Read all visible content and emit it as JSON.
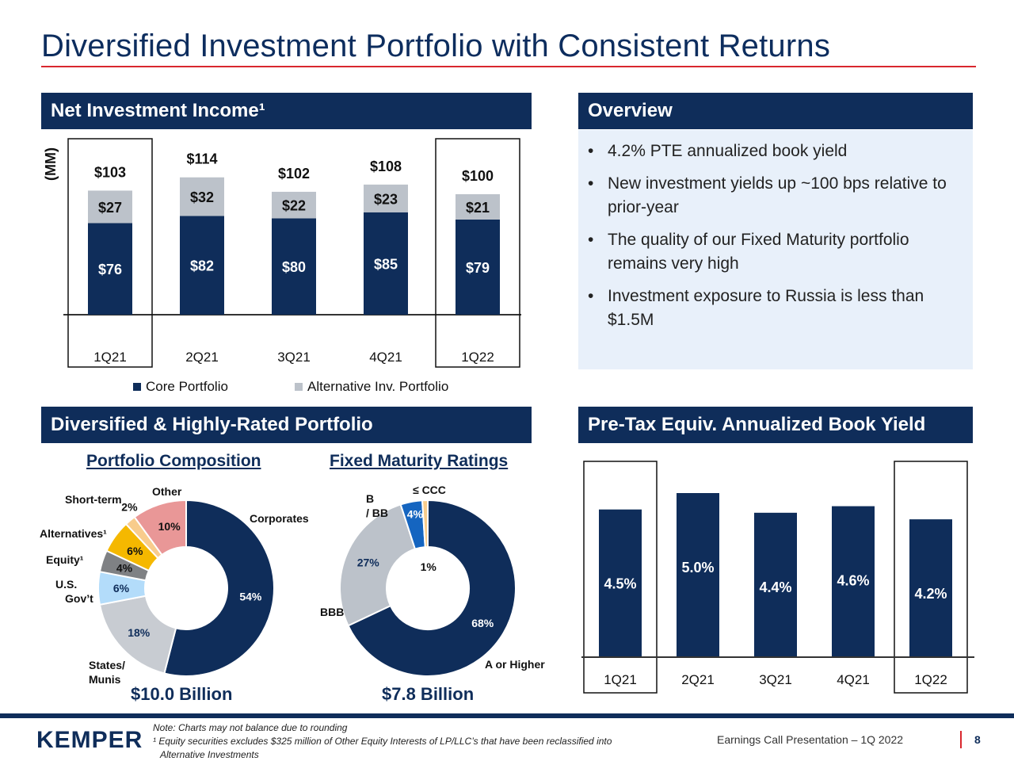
{
  "title": "Diversified Investment Portfolio with Consistent Returns",
  "colors": {
    "navy": "#0f2d5a",
    "gray": "#bcc2ca",
    "red": "#d9272e",
    "light_blue_bg": "#e8f0fa"
  },
  "sections": {
    "nii": {
      "title": "Net Investment Income¹",
      "unit_label": "(MM)"
    },
    "overview": {
      "title": "Overview",
      "bullets": [
        "4.2% PTE annualized book yield",
        "New investment yields up ~100 bps relative to prior-year",
        "The quality of our Fixed Maturity portfolio remains very high",
        "Investment exposure to Russia is less than $1.5M"
      ]
    },
    "portfolio": {
      "title": "Diversified & Highly-Rated Portfolio",
      "composition_title": "Portfolio Composition",
      "composition_total": "$10.0 Billion",
      "ratings_title": "Fixed Maturity Ratings",
      "ratings_total": "$7.8 Billion"
    },
    "yield": {
      "title": "Pre-Tax Equiv. Annualized Book Yield"
    }
  },
  "chart_data": [
    {
      "type": "bar",
      "stacked": true,
      "categories": [
        "1Q21",
        "2Q21",
        "3Q21",
        "4Q21",
        "1Q22"
      ],
      "series": [
        {
          "name": "Core Portfolio",
          "values": [
            76,
            82,
            80,
            85,
            79
          ],
          "labels": [
            "$76",
            "$82",
            "$80",
            "$85",
            "$79"
          ],
          "color": "#0f2d5a"
        },
        {
          "name": "Alternative Inv. Portfolio",
          "values": [
            27,
            32,
            22,
            23,
            21
          ],
          "labels": [
            "$27",
            "$32",
            "$22",
            "$23",
            "$21"
          ],
          "color": "#bcc2ca"
        }
      ],
      "totals": [
        103,
        114,
        102,
        108,
        100
      ],
      "total_labels": [
        "$103",
        "$114",
        "$102",
        "$108",
        "$100"
      ],
      "highlighted": [
        "1Q21",
        "1Q22"
      ],
      "legend": "bottom"
    },
    {
      "type": "pie",
      "donut": true,
      "categories": [
        "Corporates",
        "States/ Munis",
        "U.S. Gov’t",
        "Equity¹",
        "Alternatives¹",
        "Short-term",
        "Other"
      ],
      "values": [
        54,
        18,
        6,
        4,
        6,
        2,
        10
      ],
      "labels": [
        "54%",
        "18%",
        "6%",
        "4%",
        "6%",
        "2%",
        "10%"
      ],
      "colors": [
        "#0f2d5a",
        "#c8ccd2",
        "#b3dcfa",
        "#7f8184",
        "#f5b800",
        "#f8cc8c",
        "#e99797"
      ]
    },
    {
      "type": "pie",
      "donut": true,
      "categories": [
        "A or Higher",
        "BBB",
        "B / BB",
        "≤ CCC"
      ],
      "values": [
        68,
        27,
        4,
        1
      ],
      "labels": [
        "68%",
        "27%",
        "4%",
        "1%"
      ],
      "colors": [
        "#0f2d5a",
        "#bcc2ca",
        "#1565c0",
        "#f8cc8c"
      ]
    },
    {
      "type": "bar",
      "categories": [
        "1Q21",
        "2Q21",
        "3Q21",
        "4Q21",
        "1Q22"
      ],
      "values": [
        4.5,
        5.0,
        4.4,
        4.6,
        4.2
      ],
      "labels": [
        "4.5%",
        "5.0%",
        "4.4%",
        "4.6%",
        "4.2%"
      ],
      "highlighted": [
        "1Q21",
        "1Q22"
      ]
    }
  ],
  "footer": {
    "logo": "KEMPER",
    "note1": "Note: Charts may not balance due to rounding",
    "note2": "¹ Equity securities excludes $325 million of Other Equity Interests of LP/LLC’s that have been reclassified into",
    "note3": "Alternative Investments",
    "presentation": "Earnings Call Presentation – 1Q 2022",
    "page": "8"
  }
}
